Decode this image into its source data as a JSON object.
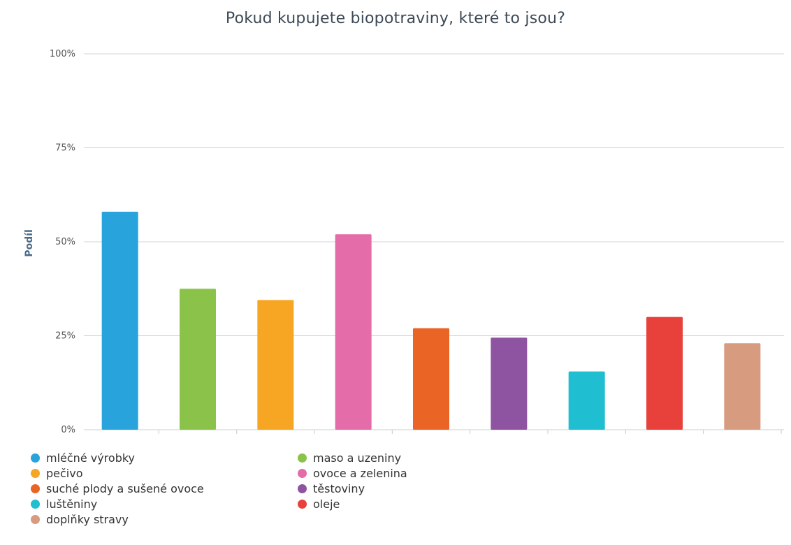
{
  "chart_data": {
    "type": "bar",
    "title": "Pokud kupujete biopotraviny, které to jsou?",
    "xlabel": "",
    "ylabel": "Podíl",
    "ylim": [
      0,
      100
    ],
    "ytick_labels": [
      "0%",
      "25%",
      "50%",
      "75%",
      "100%"
    ],
    "ytick_values": [
      0,
      25,
      50,
      75,
      100
    ],
    "grid": true,
    "legend_position": "bottom-left",
    "categories": [
      "mléčné výrobky",
      "maso a uzeniny",
      "pečivo",
      "ovoce a zelenina",
      "suché plody a sušené ovoce",
      "těstoviny",
      "luštěniny",
      "oleje",
      "doplňky stravy"
    ],
    "values": [
      58,
      37.5,
      34.5,
      52,
      27,
      24.5,
      15.5,
      30,
      23
    ],
    "colors": [
      "#28a3dc",
      "#8bc34a",
      "#f6a623",
      "#e46ca8",
      "#ea6426",
      "#8e53a1",
      "#1fbed0",
      "#e8403a",
      "#d79c80"
    ],
    "legend_order": [
      0,
      1,
      2,
      3,
      4,
      5,
      6,
      7,
      8
    ]
  }
}
